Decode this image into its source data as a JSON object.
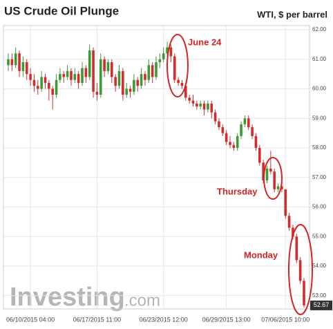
{
  "chart_data": {
    "type": "candlestick",
    "title": "US Crude Oil Plunge",
    "subtitle": "WTI, $ per barrel",
    "watermark": [
      "Investing",
      ".com"
    ],
    "annotations": [
      "June 24",
      "Thursday",
      "Monday"
    ],
    "up_color": "#3a9a34",
    "down_color": "#d42c2c",
    "grid": true,
    "ylim": [
      52.55,
      62.14
    ],
    "yticks": [
      {
        "value": 53,
        "label": "53.00"
      },
      {
        "value": 54,
        "label": "54.00"
      },
      {
        "value": 55,
        "label": "55.00"
      },
      {
        "value": 56,
        "label": "56.00"
      },
      {
        "value": 57,
        "label": "57.00"
      },
      {
        "value": 58,
        "label": "58.00"
      },
      {
        "value": 59,
        "label": "59.00"
      },
      {
        "value": 60,
        "label": "60.00"
      },
      {
        "value": 61,
        "label": "61.00"
      },
      {
        "value": 62,
        "label": "62.00"
      }
    ],
    "categories": [
      null,
      null,
      null,
      null,
      null,
      null,
      "06/10/2015 04:00",
      null,
      null,
      null,
      null,
      null,
      null,
      null,
      null,
      null,
      null,
      null,
      null,
      null,
      null,
      null,
      null,
      null,
      "06/17/2015 11:00",
      null,
      null,
      null,
      null,
      null,
      null,
      null,
      null,
      null,
      null,
      null,
      null,
      null,
      null,
      null,
      null,
      null,
      "06/23/2015 12:00",
      null,
      null,
      null,
      null,
      null,
      null,
      null,
      null,
      null,
      null,
      null,
      null,
      null,
      null,
      null,
      null,
      "06/29/2015 13:00",
      null,
      null,
      null,
      null,
      null,
      null,
      null,
      null,
      null,
      null,
      null,
      null,
      null,
      null,
      null,
      "07/06/2015 10:00",
      null,
      null,
      null,
      null,
      null
    ],
    "open": [
      60.8,
      61.0,
      60.8,
      61.2,
      60.6,
      60.9,
      60.5,
      60.3,
      60.1,
      60.0,
      60.4,
      60.2,
      60.0,
      59.8,
      60.3,
      60.5,
      60.4,
      60.6,
      60.3,
      60.5,
      60.2,
      60.7,
      60.4,
      61.3,
      59.9,
      59.8,
      61.0,
      60.6,
      60.9,
      60.4,
      60.1,
      60.6,
      59.8,
      60.0,
      59.9,
      60.3,
      60.1,
      60.5,
      60.3,
      60.8,
      60.4,
      60.9,
      61.0,
      61.2,
      61.4,
      61.1,
      60.3,
      60.2,
      60.1,
      59.7,
      59.6,
      59.5,
      59.4,
      59.5,
      59.3,
      59.5,
      59.2,
      58.9,
      58.7,
      58.5,
      58.2,
      58.1,
      58.0,
      58.4,
      58.8,
      59.0,
      58.7,
      58.4,
      58.0,
      57.5,
      56.9,
      57.3,
      57.2,
      56.6,
      56.7,
      56.6,
      55.7,
      55.3,
      55.0,
      54.2,
      53.5
    ],
    "high": [
      61.2,
      61.2,
      61.4,
      61.3,
      61.1,
      61.0,
      60.7,
      60.5,
      60.3,
      60.6,
      60.5,
      60.3,
      60.1,
      60.5,
      60.7,
      60.6,
      60.8,
      60.7,
      60.7,
      60.6,
      60.9,
      60.8,
      61.5,
      61.4,
      60.2,
      61.2,
      61.1,
      61.0,
      61.0,
      60.5,
      60.8,
      60.7,
      60.2,
      60.1,
      60.5,
      60.4,
      60.7,
      60.6,
      61.0,
      60.9,
      61.1,
      61.2,
      61.4,
      61.6,
      61.5,
      61.2,
      60.4,
      60.3,
      60.2,
      59.8,
      59.8,
      59.6,
      59.6,
      59.6,
      59.6,
      59.6,
      59.3,
      59.0,
      58.8,
      58.6,
      58.4,
      58.2,
      58.5,
      58.9,
      59.1,
      59.1,
      58.8,
      58.5,
      58.1,
      57.6,
      57.4,
      57.9,
      57.3,
      56.8,
      56.8,
      56.6,
      55.8,
      55.4,
      55.1,
      54.3,
      53.6
    ],
    "low": [
      60.6,
      60.6,
      60.7,
      60.4,
      60.4,
      60.3,
      60.1,
      59.9,
      59.8,
      59.9,
      60.0,
      59.6,
      59.3,
      59.7,
      60.2,
      60.2,
      60.3,
      60.1,
      60.2,
      60.0,
      60.1,
      60.2,
      60.3,
      59.7,
      59.6,
      59.7,
      60.4,
      60.5,
      60.2,
      59.9,
      60.0,
      59.6,
      59.7,
      59.7,
      59.8,
      59.9,
      60.0,
      60.1,
      60.2,
      60.2,
      60.3,
      60.7,
      60.9,
      61.1,
      60.9,
      60.2,
      60.1,
      60.0,
      59.6,
      59.5,
      59.4,
      59.3,
      59.3,
      59.1,
      59.2,
      59.0,
      58.8,
      58.6,
      58.4,
      58.1,
      58.0,
      57.9,
      57.9,
      58.3,
      58.7,
      58.6,
      58.3,
      57.9,
      57.4,
      56.8,
      56.8,
      57.1,
      56.5,
      56.5,
      56.5,
      55.6,
      55.2,
      54.9,
      54.1,
      53.4,
      52.6
    ],
    "close": [
      61.0,
      60.8,
      61.2,
      60.6,
      60.9,
      60.5,
      60.3,
      60.1,
      60.0,
      60.4,
      60.2,
      60.0,
      59.8,
      60.3,
      60.5,
      60.4,
      60.6,
      60.3,
      60.5,
      60.2,
      60.7,
      60.4,
      61.3,
      59.9,
      59.8,
      61.0,
      60.6,
      60.9,
      60.4,
      60.1,
      60.6,
      59.8,
      60.0,
      59.9,
      60.3,
      60.1,
      60.5,
      60.3,
      60.8,
      60.4,
      60.9,
      61.0,
      61.2,
      61.4,
      61.1,
      60.3,
      60.2,
      60.1,
      59.7,
      59.6,
      59.5,
      59.4,
      59.5,
      59.3,
      59.5,
      59.2,
      58.9,
      58.7,
      58.5,
      58.2,
      58.1,
      58.0,
      58.4,
      58.8,
      59.0,
      58.7,
      58.4,
      58.0,
      57.5,
      56.9,
      57.3,
      57.2,
      56.6,
      56.7,
      56.6,
      55.7,
      55.3,
      55.0,
      54.2,
      53.5,
      52.67
    ]
  }
}
